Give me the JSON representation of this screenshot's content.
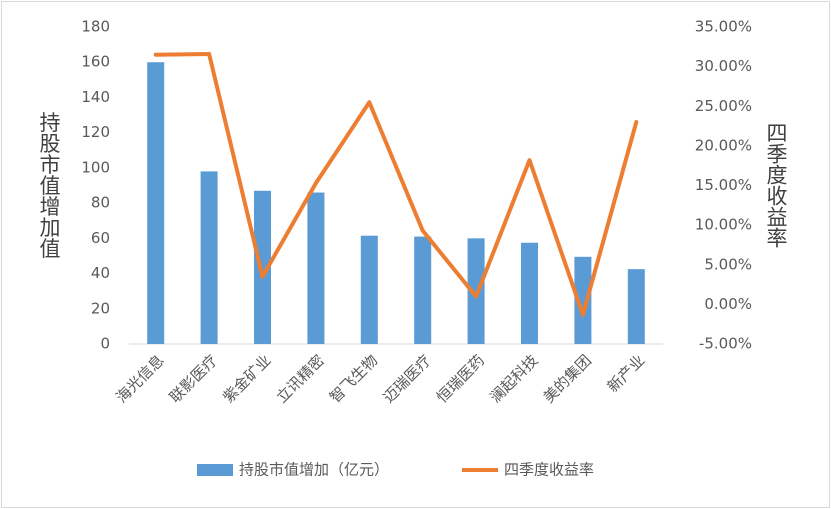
{
  "chart_data": {
    "type": "bar-line",
    "categories": [
      "海光信息",
      "联影医疗",
      "紫金矿业",
      "立讯精密",
      "智飞生物",
      "迈瑞医疗",
      "恒瑞医药",
      "澜起科技",
      "美的集团",
      "新产业"
    ],
    "series": [
      {
        "name": "持股市值增加（亿元）",
        "type": "bar",
        "color": "#5b9bd5",
        "values": [
          160,
          98,
          87,
          86,
          61.5,
          61,
          60,
          57.5,
          49.5,
          42.5
        ]
      },
      {
        "name": "四季度收益率",
        "type": "line",
        "axis": "y2",
        "color": "#ed7d31",
        "values": [
          31.5,
          31.6,
          3.5,
          15.3,
          25.5,
          9.3,
          1.0,
          18.2,
          -1.3,
          23.0
        ]
      }
    ],
    "ylabel": "持股市值增加值",
    "y2label": "四季度收益率",
    "ylim": [
      0,
      180
    ],
    "yticks": [
      0,
      20,
      40,
      60,
      80,
      100,
      120,
      140,
      160,
      180
    ],
    "y2lim": [
      -5,
      35
    ],
    "y2ticks": [
      {
        "value": -5,
        "label": "-5.00%"
      },
      {
        "value": 0,
        "label": "0.00%"
      },
      {
        "value": 5,
        "label": "5.00%"
      },
      {
        "value": 10,
        "label": "10.00%"
      },
      {
        "value": 15,
        "label": "15.00%"
      },
      {
        "value": 20,
        "label": "20.00%"
      },
      {
        "value": 25,
        "label": "25.00%"
      },
      {
        "value": 30,
        "label": "30.00%"
      },
      {
        "value": 35,
        "label": "35.00%"
      }
    ],
    "legend": "bottom"
  }
}
